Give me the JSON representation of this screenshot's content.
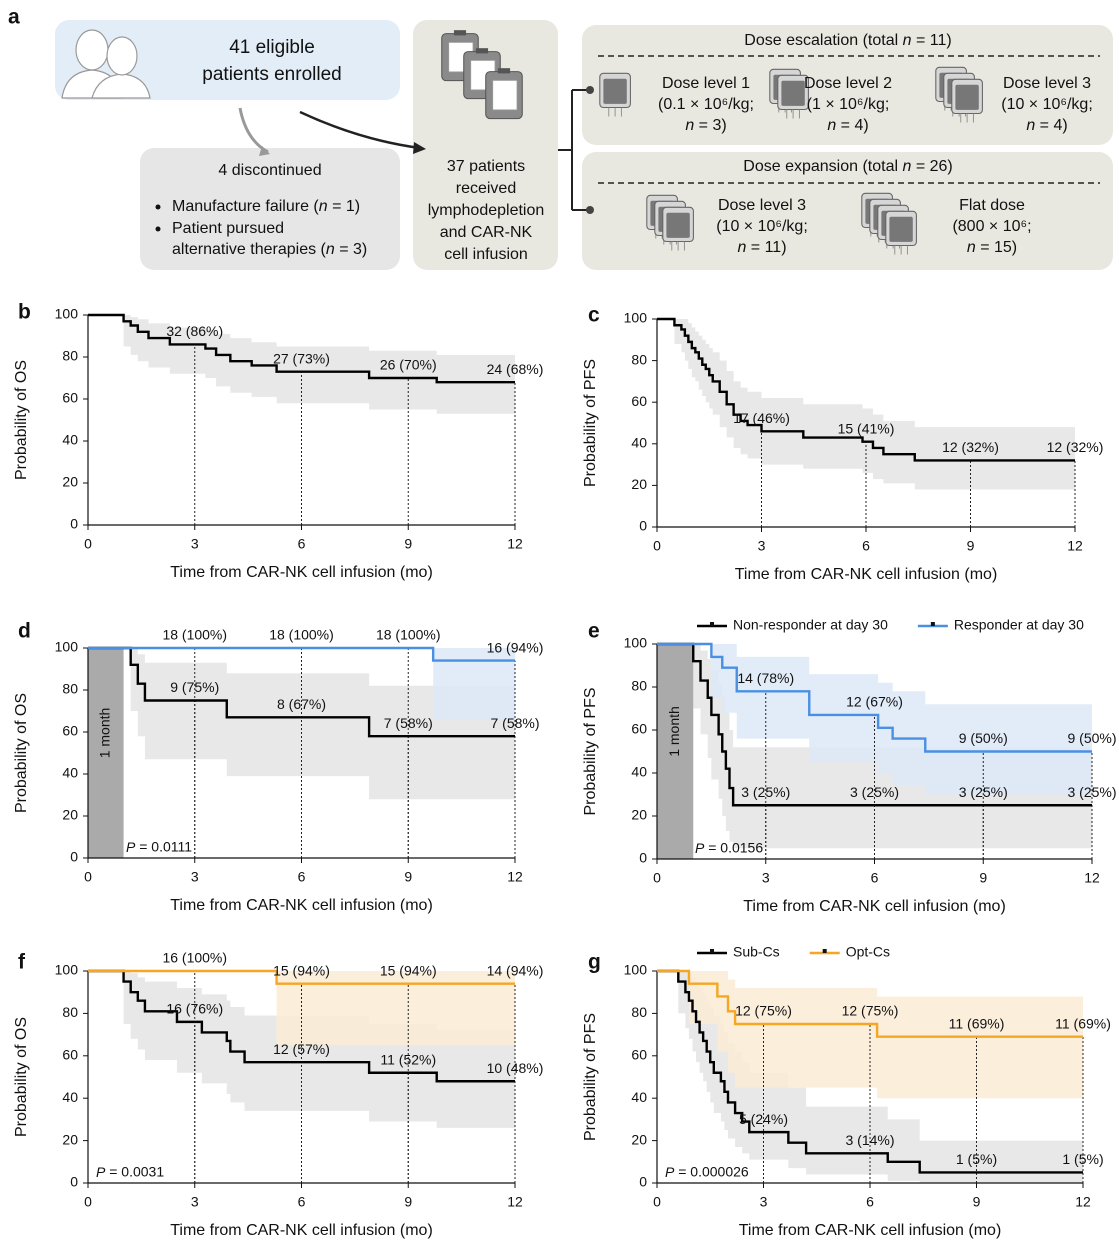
{
  "diagram": {
    "panel": "a",
    "enrolled": [
      "41 eligible",
      "patients enrolled"
    ],
    "discontinued": {
      "title": "4 discontinued",
      "items": [
        [
          "Manufacture failure (n = 1)"
        ],
        [
          "Patient pursued",
          "alternative therapies (n = 3)"
        ]
      ]
    },
    "treated": [
      "37 patients",
      "received",
      "lymphodepletion",
      "and CAR-NK",
      "cell infusion"
    ],
    "escalation": {
      "title": "Dose escalation (total n = 11)",
      "arms": [
        [
          "Dose level 1",
          "(0.1 × 10⁶/kg;",
          "n = 3)"
        ],
        [
          "Dose level 2",
          "(1 × 10⁶/kg;",
          "n = 4)"
        ],
        [
          "Dose level 3",
          "(10 × 10⁶/kg;",
          "n = 4)"
        ]
      ]
    },
    "expansion": {
      "title": "Dose expansion (total n = 26)",
      "arms": [
        [
          "Dose level 3",
          "(10 × 10⁶/kg;",
          "n = 11)"
        ],
        [
          "Flat dose",
          "(800 × 10⁶;",
          "n = 15)"
        ]
      ]
    }
  },
  "chart_data": [
    {
      "type": "step",
      "panel": "b",
      "ylabel": "Probability of OS",
      "xlabel": "Time from CAR-NK cell infusion (mo)",
      "xlim": [
        0,
        12
      ],
      "xticks": [
        0,
        3,
        6,
        9,
        12
      ],
      "ylim": [
        0,
        100
      ],
      "yticks": [
        0,
        20,
        40,
        60,
        80,
        100
      ],
      "series": [
        {
          "color": "#000000",
          "band_color": "#e4e4e4",
          "x": [
            0,
            1,
            1.2,
            1.4,
            1.7,
            2.3,
            3.3,
            3.6,
            4,
            4.6,
            5.3,
            7.9,
            9.8,
            12
          ],
          "values": [
            100,
            97,
            95,
            92,
            89,
            86,
            84,
            81,
            78,
            76,
            73,
            70,
            68,
            68
          ],
          "upper": [
            100,
            100,
            99,
            98,
            96,
            94,
            93,
            91,
            89,
            87,
            85,
            83,
            81,
            80
          ],
          "lower": [
            100,
            85,
            81,
            78,
            75,
            72,
            70,
            66,
            63,
            61,
            58,
            55,
            53,
            53
          ],
          "annotations": [
            {
              "x": 3,
              "value": 86,
              "label": "32 (86%)"
            },
            {
              "x": 6,
              "value": 73,
              "label": "27 (73%)"
            },
            {
              "x": 9,
              "value": 70,
              "label": "26 (70%)"
            },
            {
              "x": 12,
              "value": 68,
              "label": "24 (68%)"
            }
          ]
        }
      ]
    },
    {
      "type": "step",
      "panel": "c",
      "ylabel": "Probability of PFS",
      "xlabel": "Time from CAR-NK cell infusion (mo)",
      "xlim": [
        0,
        12
      ],
      "xticks": [
        0,
        3,
        6,
        9,
        12
      ],
      "ylim": [
        0,
        100
      ],
      "yticks": [
        0,
        20,
        40,
        60,
        80,
        100
      ],
      "series": [
        {
          "color": "#000000",
          "band_color": "#e4e4e4",
          "x": [
            0,
            0.5,
            0.7,
            0.8,
            0.9,
            1.0,
            1.1,
            1.2,
            1.3,
            1.4,
            1.5,
            1.6,
            1.8,
            2.0,
            2.2,
            2.4,
            2.6,
            3.0,
            4.2,
            5.9,
            6.2,
            6.5,
            7.4,
            12
          ],
          "values": [
            100,
            97,
            95,
            92,
            89,
            86,
            84,
            81,
            78,
            76,
            73,
            70,
            65,
            59,
            54,
            51,
            49,
            46,
            43,
            41,
            38,
            35,
            32,
            32
          ],
          "upper": [
            100,
            100,
            100,
            100,
            98,
            96,
            94,
            92,
            90,
            88,
            86,
            84,
            80,
            75,
            70,
            67,
            65,
            62,
            59,
            57,
            54,
            51,
            48,
            47
          ],
          "lower": [
            100,
            88,
            84,
            80,
            76,
            72,
            70,
            66,
            63,
            60,
            57,
            54,
            48,
            43,
            38,
            35,
            33,
            30,
            28,
            26,
            23,
            21,
            18,
            18
          ],
          "annotations": [
            {
              "x": 3,
              "value": 46,
              "label": "17 (46%)"
            },
            {
              "x": 6,
              "value": 41,
              "label": "15 (41%)"
            },
            {
              "x": 9,
              "value": 32,
              "label": "12 (32%)"
            },
            {
              "x": 12,
              "value": 32,
              "label": "12 (32%)"
            }
          ]
        }
      ]
    },
    {
      "type": "step",
      "panel": "d",
      "ylabel": "Probability of OS",
      "xlabel": "Time from CAR-NK cell infusion (mo)",
      "xlim": [
        0,
        12
      ],
      "xticks": [
        0,
        3,
        6,
        9,
        12
      ],
      "ylim": [
        0,
        100
      ],
      "yticks": [
        0,
        20,
        40,
        60,
        80,
        100
      ],
      "shade": {
        "x": [
          0,
          1
        ],
        "label": "1 month"
      },
      "p_value": "P = 0.0111",
      "series": [
        {
          "color": "#000000",
          "band_color": "#e4e4e4",
          "x": [
            0,
            1.2,
            1.4,
            1.6,
            3.9,
            7.9,
            12
          ],
          "values": [
            100,
            92,
            83,
            75,
            67,
            58,
            58
          ],
          "upper": [
            100,
            100,
            97,
            93,
            88,
            82,
            82
          ],
          "lower": [
            100,
            70,
            58,
            47,
            39,
            28,
            28
          ],
          "annotations": [
            {
              "x": 3,
              "value": 75,
              "label": "9 (75%)"
            },
            {
              "x": 6,
              "value": 67,
              "label": "8 (67%)"
            },
            {
              "x": 9,
              "value": 58,
              "label": "7 (58%)"
            },
            {
              "x": 12,
              "value": 58,
              "label": "7 (58%)"
            }
          ]
        },
        {
          "color": "#4a90e2",
          "band_color": "#dde9f8",
          "x": [
            0,
            9.7,
            12
          ],
          "values": [
            100,
            94,
            94
          ],
          "upper": [
            100,
            100,
            100
          ],
          "lower": [
            100,
            66,
            66
          ],
          "annotations": [
            {
              "x": 3,
              "value": 100,
              "label": "18 (100%)"
            },
            {
              "x": 6,
              "value": 100,
              "label": "18 (100%)"
            },
            {
              "x": 9,
              "value": 100,
              "label": "18 (100%)"
            },
            {
              "x": 12,
              "value": 94,
              "label": "16 (94%)"
            }
          ]
        }
      ]
    },
    {
      "type": "step",
      "panel": "e",
      "ylabel": "Probability of PFS",
      "xlabel": "Time from CAR-NK cell infusion (mo)",
      "xlim": [
        0,
        12
      ],
      "xticks": [
        0,
        3,
        6,
        9,
        12
      ],
      "ylim": [
        0,
        100
      ],
      "yticks": [
        0,
        20,
        40,
        60,
        80,
        100
      ],
      "shade": {
        "x": [
          0,
          1
        ],
        "label": "1 month"
      },
      "p_value": "P = 0.0156",
      "series": [
        {
          "name": "Non-responder at day 30",
          "color": "#000000",
          "band_color": "#e4e4e4",
          "x": [
            0,
            1.0,
            1.2,
            1.4,
            1.5,
            1.7,
            1.8,
            1.9,
            2.0,
            2.1,
            12
          ],
          "values": [
            100,
            92,
            83,
            75,
            67,
            58,
            50,
            42,
            33,
            25,
            25
          ],
          "upper": [
            100,
            100,
            97,
            93,
            88,
            82,
            76,
            68,
            60,
            52,
            52
          ],
          "lower": [
            100,
            70,
            58,
            47,
            37,
            28,
            20,
            13,
            8,
            5,
            5
          ],
          "annotations": [
            {
              "x": 3,
              "value": 25,
              "label": "3 (25%)"
            },
            {
              "x": 6,
              "value": 25,
              "label": "3 (25%)"
            },
            {
              "x": 9,
              "value": 25,
              "label": "3 (25%)"
            },
            {
              "x": 12,
              "value": 25,
              "label": "3 (25%)"
            }
          ]
        },
        {
          "name": "Responder at day 30",
          "color": "#4a90e2",
          "band_color": "#dde9f8",
          "x": [
            0,
            1.5,
            1.8,
            2.2,
            4.2,
            6.1,
            6.5,
            7.4,
            12
          ],
          "values": [
            100,
            94,
            89,
            78,
            67,
            61,
            56,
            50,
            50
          ],
          "upper": [
            100,
            100,
            100,
            94,
            86,
            82,
            78,
            72,
            70
          ],
          "lower": [
            100,
            75,
            68,
            56,
            45,
            40,
            34,
            30,
            30
          ],
          "annotations": [
            {
              "x": 3,
              "value": 78,
              "label": "14 (78%)"
            },
            {
              "x": 6,
              "value": 67,
              "label": "12 (67%)"
            },
            {
              "x": 9,
              "value": 50,
              "label": "9 (50%)"
            },
            {
              "x": 12,
              "value": 50,
              "label": "9 (50%)"
            }
          ]
        }
      ]
    },
    {
      "type": "step",
      "panel": "f",
      "ylabel": "Probability of OS",
      "xlabel": "Time from CAR-NK cell infusion (mo)",
      "xlim": [
        0,
        12
      ],
      "xticks": [
        0,
        3,
        6,
        9,
        12
      ],
      "ylim": [
        0,
        100
      ],
      "yticks": [
        0,
        20,
        40,
        60,
        80,
        100
      ],
      "p_value": "P = 0.0031",
      "series": [
        {
          "color": "#000000",
          "band_color": "#e4e4e4",
          "x": [
            0,
            1,
            1.2,
            1.4,
            1.6,
            2.5,
            3.2,
            3.9,
            4,
            4.4,
            7.9,
            9.8,
            12
          ],
          "values": [
            100,
            95,
            90,
            86,
            81,
            76,
            71,
            67,
            62,
            57,
            52,
            48,
            48
          ],
          "upper": [
            100,
            100,
            99,
            97,
            95,
            92,
            89,
            86,
            83,
            79,
            75,
            72,
            72
          ],
          "lower": [
            100,
            75,
            68,
            63,
            58,
            52,
            47,
            42,
            38,
            34,
            29,
            26,
            26
          ],
          "annotations": [
            {
              "x": 3,
              "value": 76,
              "label": "16 (76%)"
            },
            {
              "x": 6,
              "value": 57,
              "label": "12 (57%)"
            },
            {
              "x": 9,
              "value": 52,
              "label": "11 (52%)"
            },
            {
              "x": 12,
              "value": 48,
              "label": "10 (48%)"
            }
          ]
        },
        {
          "color": "#f5a623",
          "band_color": "#faecd6",
          "x": [
            0,
            5.3,
            12
          ],
          "values": [
            100,
            94,
            94
          ],
          "upper": [
            100,
            100,
            100
          ],
          "lower": [
            100,
            65,
            65
          ],
          "annotations": [
            {
              "x": 3,
              "value": 100,
              "label": "16 (100%)"
            },
            {
              "x": 6,
              "value": 94,
              "label": "15 (94%)"
            },
            {
              "x": 9,
              "value": 94,
              "label": "15 (94%)"
            },
            {
              "x": 12,
              "value": 94,
              "label": "14 (94%)"
            }
          ]
        }
      ]
    },
    {
      "type": "step",
      "panel": "g",
      "ylabel": "Probability of PFS",
      "xlabel": "Time from CAR-NK cell infusion (mo)",
      "xlim": [
        0,
        12
      ],
      "xticks": [
        0,
        3,
        6,
        9,
        12
      ],
      "ylim": [
        0,
        100
      ],
      "yticks": [
        0,
        20,
        40,
        60,
        80,
        100
      ],
      "p_value": "P = 0.000026",
      "series": [
        {
          "name": "Sub-Cs",
          "color": "#000000",
          "band_color": "#e4e4e4",
          "x": [
            0,
            0.6,
            0.8,
            0.9,
            1.0,
            1.1,
            1.2,
            1.3,
            1.4,
            1.5,
            1.6,
            1.8,
            1.9,
            2.0,
            2.2,
            2.4,
            2.6,
            3.7,
            4.2,
            6.5,
            7.4,
            12
          ],
          "values": [
            100,
            95,
            90,
            86,
            81,
            76,
            71,
            67,
            62,
            57,
            52,
            48,
            43,
            38,
            33,
            29,
            24,
            19,
            14,
            10,
            5,
            5
          ],
          "upper": [
            100,
            100,
            100,
            99,
            97,
            95,
            92,
            89,
            86,
            83,
            79,
            75,
            71,
            66,
            62,
            57,
            52,
            45,
            36,
            30,
            20,
            20
          ],
          "lower": [
            100,
            80,
            73,
            68,
            62,
            57,
            52,
            48,
            43,
            38,
            33,
            29,
            25,
            21,
            17,
            14,
            11,
            7,
            4,
            1,
            0,
            0
          ],
          "annotations": [
            {
              "x": 3,
              "value": 24,
              "label": "5 (24%)"
            },
            {
              "x": 6,
              "value": 14,
              "label": "3 (14%)"
            },
            {
              "x": 9,
              "value": 5,
              "label": "1 (5%)"
            },
            {
              "x": 12,
              "value": 5,
              "label": "1 (5%)"
            }
          ]
        },
        {
          "name": "Opt-Cs",
          "color": "#f5a623",
          "band_color": "#faecd6",
          "x": [
            0,
            0.9,
            1.7,
            2.0,
            2.2,
            6.2,
            12
          ],
          "values": [
            100,
            94,
            88,
            81,
            75,
            69,
            69
          ],
          "upper": [
            100,
            100,
            100,
            96,
            92,
            88,
            86
          ],
          "lower": [
            100,
            75,
            62,
            52,
            45,
            40,
            40
          ],
          "annotations": [
            {
              "x": 3,
              "value": 75,
              "label": "12 (75%)"
            },
            {
              "x": 6,
              "value": 75,
              "label": "12 (75%)"
            },
            {
              "x": 9,
              "value": 69,
              "label": "11 (69%)"
            },
            {
              "x": 12,
              "value": 69,
              "label": "11 (69%)"
            }
          ]
        }
      ]
    }
  ]
}
